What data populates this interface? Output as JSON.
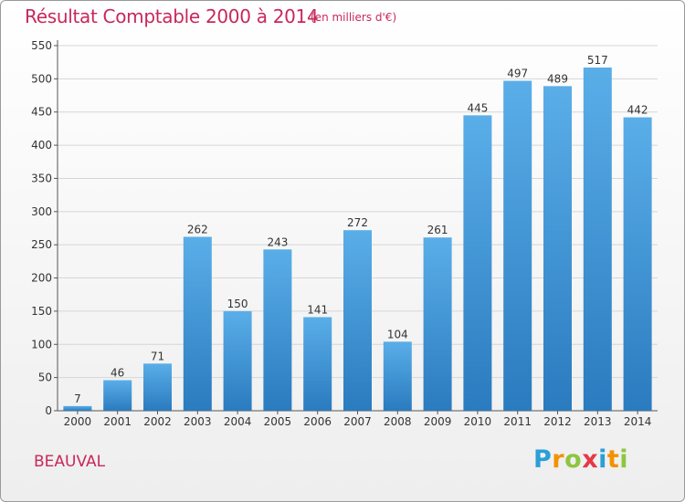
{
  "title": "Résultat Comptable 2000 à 2014",
  "subtitle": "(en milliers d'€)",
  "commune": "BEAUVAL",
  "logo": {
    "letters": [
      "P",
      "r",
      "o",
      "x",
      "i",
      "t",
      "i"
    ],
    "colors": [
      "#2a9fd8",
      "#f39200",
      "#8dc63f",
      "#e63946",
      "#2a9fd8",
      "#f39200",
      "#8dc63f"
    ]
  },
  "colors": {
    "title": "#c8285a",
    "bar_top": "#5aaee8",
    "bar_bottom": "#2a7bbf"
  },
  "chart_data": {
    "type": "bar",
    "categories": [
      "2000",
      "2001",
      "2002",
      "2003",
      "2004",
      "2005",
      "2006",
      "2007",
      "2008",
      "2009",
      "2010",
      "2011",
      "2012",
      "2013",
      "2014"
    ],
    "values": [
      7,
      46,
      71,
      262,
      150,
      243,
      141,
      272,
      104,
      261,
      445,
      497,
      489,
      517,
      442
    ],
    "yticks": [
      0,
      50,
      100,
      150,
      200,
      250,
      300,
      350,
      400,
      450,
      500,
      550
    ],
    "ylim": [
      0,
      550
    ],
    "grid": "horizontal",
    "data_labels": true
  }
}
